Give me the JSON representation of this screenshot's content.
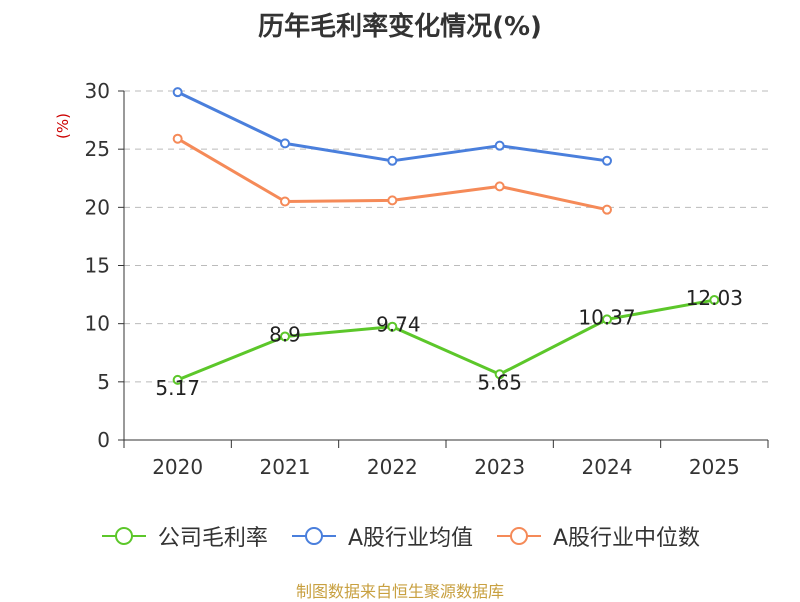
{
  "chart_data": {
    "type": "line",
    "title": "历年毛利率变化情况(%)",
    "ylabel": "(%)",
    "xlabel": "",
    "categories": [
      "2020",
      "2021",
      "2022",
      "2023",
      "2024",
      "2025"
    ],
    "ylim": [
      0,
      30
    ],
    "yticks": [
      "0",
      "5",
      "10",
      "15",
      "20",
      "25",
      "30"
    ],
    "grid": true,
    "legend_position": "bottom",
    "series": [
      {
        "name": "公司毛利率",
        "color": "#5cc72a",
        "values": [
          5.17,
          8.9,
          9.74,
          5.65,
          10.37,
          12.03
        ],
        "data_labels": [
          "5.17",
          "8.9",
          "9.74",
          "5.65",
          "10.37",
          "12.03"
        ]
      },
      {
        "name": "A股行业均值",
        "color": "#4a7fdc",
        "values": [
          29.9,
          25.5,
          24.0,
          25.3,
          24.0,
          null
        ]
      },
      {
        "name": "A股行业中位数",
        "color": "#f58a58",
        "values": [
          25.9,
          20.5,
          20.6,
          21.8,
          19.8,
          null
        ]
      }
    ]
  },
  "source": "制图数据来自恒生聚源数据库",
  "colors": {
    "axis": "#333333",
    "grid": "#bbbbbb",
    "ylabel": "#cc0000"
  }
}
